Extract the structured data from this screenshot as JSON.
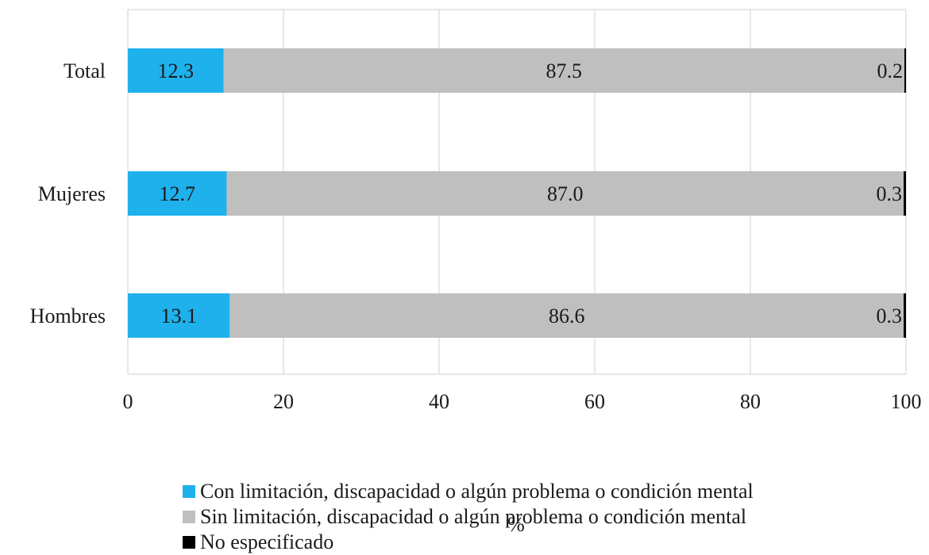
{
  "chart_data": {
    "type": "bar",
    "orientation": "horizontal",
    "stacked": true,
    "categories": [
      "Total",
      "Mujeres",
      "Hombres"
    ],
    "series": [
      {
        "name": "Con limitación, discapacidad o algún problema o condición mental",
        "values": [
          12.3,
          12.7,
          13.1
        ],
        "labels": [
          "12.3",
          "12.7",
          "13.1"
        ],
        "color": "#1fb1ec"
      },
      {
        "name": "Sin limitación, discapacidad o algún problema o condición mental",
        "values": [
          87.5,
          87.0,
          86.6
        ],
        "labels": [
          "87.5",
          "87.0",
          "86.6"
        ],
        "color": "#bfbfbf"
      },
      {
        "name": "No especificado",
        "values": [
          0.2,
          0.3,
          0.3
        ],
        "labels": [
          "0.2",
          "0.3",
          "0.3"
        ],
        "color": "#000000"
      }
    ],
    "xlabel": "%",
    "xlim": [
      0,
      100
    ],
    "xticks": [
      "0",
      "20",
      "40",
      "60",
      "80",
      "100"
    ],
    "grid": true,
    "legend_position": "bottom"
  }
}
